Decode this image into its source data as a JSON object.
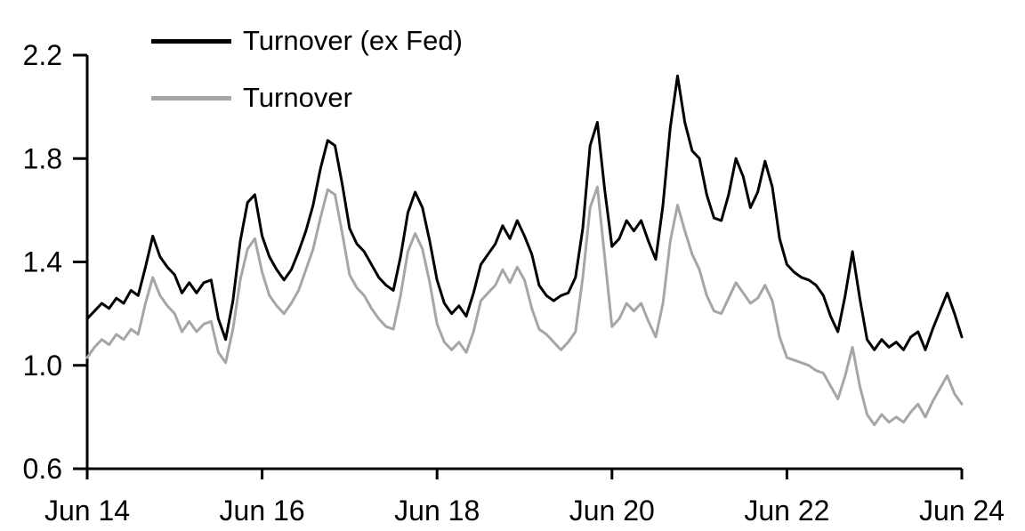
{
  "chart_data": {
    "type": "line",
    "title": "",
    "xlabel": "",
    "ylabel": "",
    "background": "#ffffff",
    "axis_color": "#000000",
    "grid": false,
    "legend_position": "top-left",
    "ylim": [
      0.6,
      2.2
    ],
    "y_ticks": [
      "0.6",
      "1.0",
      "1.4",
      "1.8",
      "2.2"
    ],
    "y_tick_values": [
      0.6,
      1.0,
      1.4,
      1.8,
      2.2
    ],
    "x_tick_labels": [
      "Jun 14",
      "Jun 16",
      "Jun 18",
      "Jun 20",
      "Jun 22",
      "Jun 24"
    ],
    "x_tick_indices": [
      0,
      24,
      48,
      72,
      96,
      120
    ],
    "x_unit": "month",
    "x_start": "Jun 2014",
    "x_end": "Jun 2024",
    "series": [
      {
        "name": "Turnover (ex Fed)",
        "color": "#000000",
        "stroke_width": 3,
        "values": [
          1.18,
          1.21,
          1.24,
          1.22,
          1.26,
          1.24,
          1.29,
          1.27,
          1.38,
          1.5,
          1.42,
          1.38,
          1.35,
          1.28,
          1.32,
          1.28,
          1.32,
          1.33,
          1.18,
          1.1,
          1.25,
          1.48,
          1.63,
          1.66,
          1.5,
          1.42,
          1.37,
          1.33,
          1.37,
          1.44,
          1.52,
          1.62,
          1.76,
          1.87,
          1.85,
          1.7,
          1.53,
          1.47,
          1.44,
          1.39,
          1.34,
          1.31,
          1.29,
          1.42,
          1.59,
          1.67,
          1.61,
          1.48,
          1.33,
          1.24,
          1.2,
          1.23,
          1.19,
          1.28,
          1.39,
          1.43,
          1.47,
          1.54,
          1.49,
          1.56,
          1.5,
          1.43,
          1.31,
          1.27,
          1.25,
          1.27,
          1.28,
          1.34,
          1.53,
          1.85,
          1.94,
          1.68,
          1.46,
          1.49,
          1.56,
          1.52,
          1.56,
          1.48,
          1.41,
          1.62,
          1.92,
          2.12,
          1.94,
          1.83,
          1.8,
          1.66,
          1.57,
          1.56,
          1.66,
          1.8,
          1.73,
          1.61,
          1.67,
          1.79,
          1.69,
          1.49,
          1.39,
          1.36,
          1.34,
          1.33,
          1.31,
          1.27,
          1.19,
          1.13,
          1.27,
          1.44,
          1.26,
          1.1,
          1.06,
          1.1,
          1.07,
          1.09,
          1.06,
          1.11,
          1.13,
          1.06,
          1.14,
          1.21,
          1.28,
          1.2,
          1.11
        ]
      },
      {
        "name": "Turnover",
        "color": "#a6a6a6",
        "stroke_width": 3,
        "values": [
          1.03,
          1.07,
          1.1,
          1.08,
          1.12,
          1.1,
          1.14,
          1.12,
          1.24,
          1.34,
          1.27,
          1.23,
          1.2,
          1.13,
          1.17,
          1.13,
          1.16,
          1.17,
          1.05,
          1.01,
          1.14,
          1.33,
          1.45,
          1.49,
          1.36,
          1.27,
          1.23,
          1.2,
          1.24,
          1.29,
          1.37,
          1.45,
          1.57,
          1.68,
          1.66,
          1.51,
          1.35,
          1.3,
          1.27,
          1.22,
          1.18,
          1.15,
          1.14,
          1.27,
          1.44,
          1.51,
          1.45,
          1.32,
          1.16,
          1.09,
          1.06,
          1.09,
          1.05,
          1.13,
          1.25,
          1.28,
          1.31,
          1.37,
          1.32,
          1.38,
          1.33,
          1.22,
          1.14,
          1.12,
          1.09,
          1.06,
          1.09,
          1.13,
          1.34,
          1.61,
          1.69,
          1.42,
          1.15,
          1.18,
          1.24,
          1.21,
          1.24,
          1.17,
          1.11,
          1.24,
          1.48,
          1.62,
          1.52,
          1.43,
          1.37,
          1.27,
          1.21,
          1.2,
          1.26,
          1.32,
          1.28,
          1.24,
          1.26,
          1.31,
          1.25,
          1.11,
          1.03,
          1.02,
          1.01,
          1.0,
          0.98,
          0.97,
          0.92,
          0.87,
          0.96,
          1.07,
          0.92,
          0.81,
          0.77,
          0.81,
          0.78,
          0.8,
          0.78,
          0.82,
          0.85,
          0.8,
          0.86,
          0.91,
          0.96,
          0.89,
          0.85
        ]
      }
    ]
  },
  "layout_labels": {
    "legend_items": [
      "Turnover (ex Fed)",
      "Turnover"
    ]
  }
}
